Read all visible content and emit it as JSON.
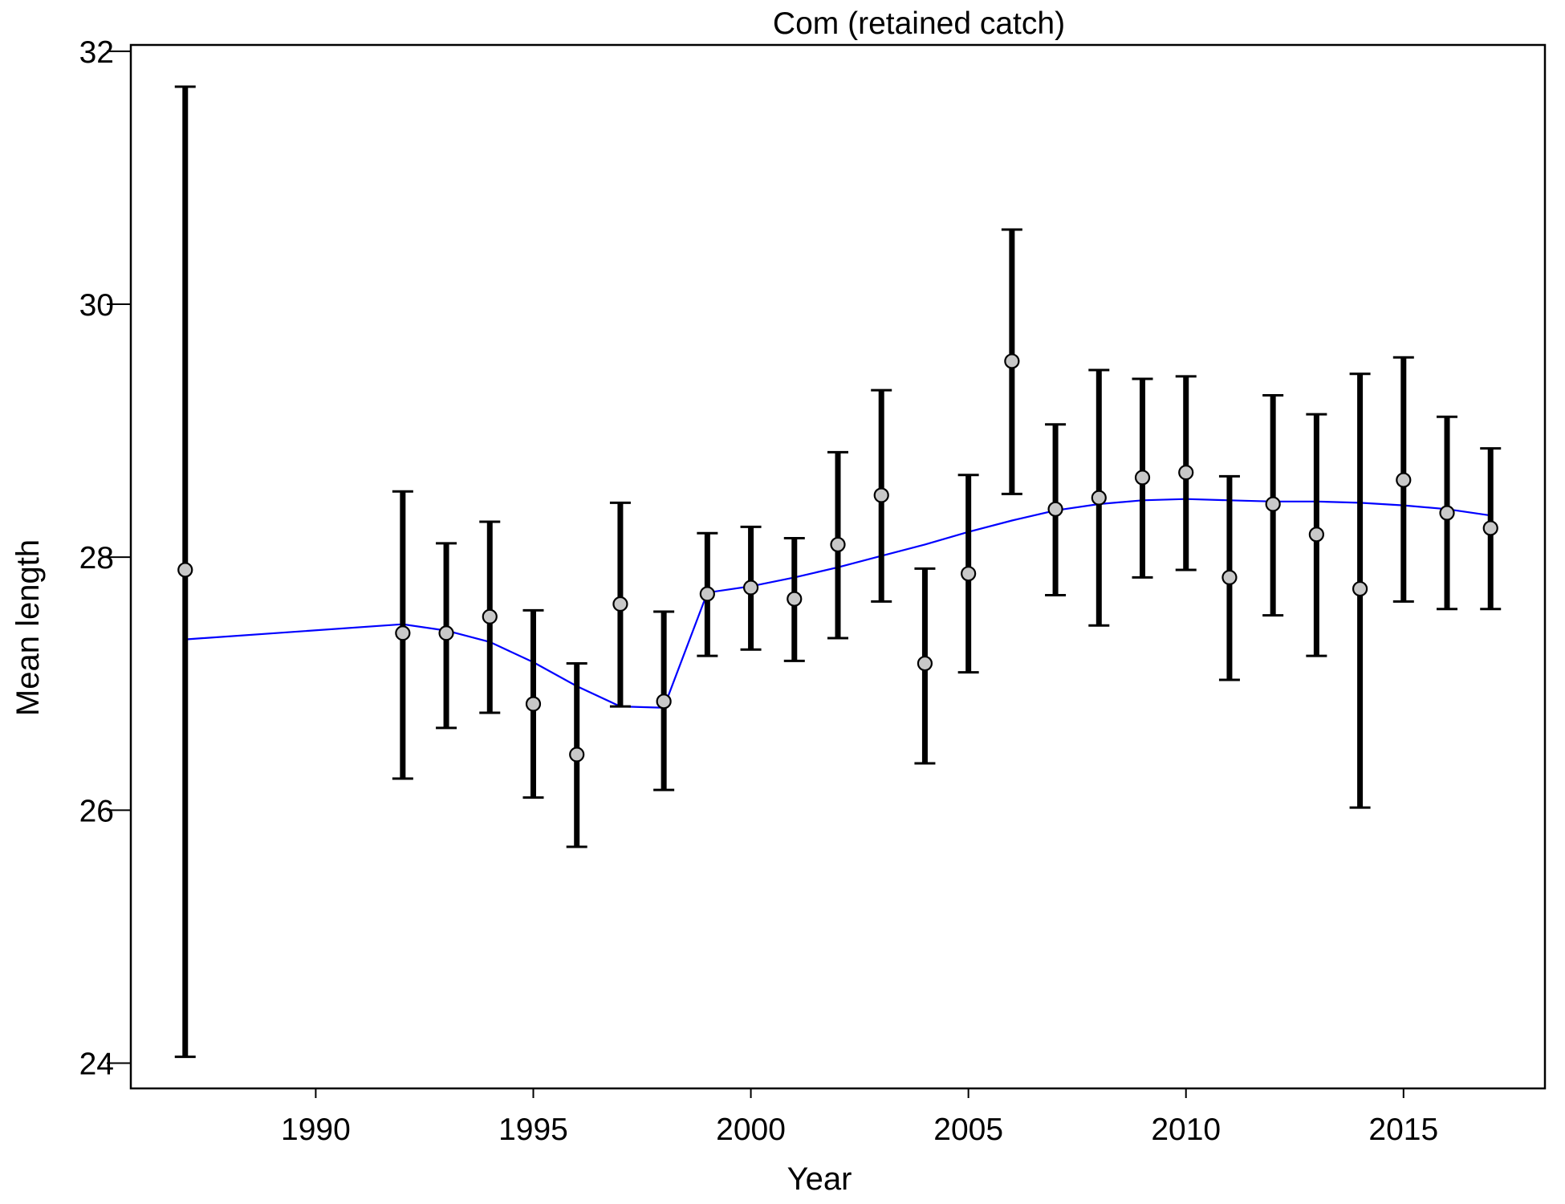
{
  "chart_data": {
    "type": "scatter",
    "title": "Com (retained catch)",
    "xlabel": "Year",
    "ylabel": "Mean length",
    "xlim": [
      1985.75,
      2018.25
    ],
    "ylim": [
      23.8,
      32.05
    ],
    "x_ticks": [
      1990,
      1995,
      2000,
      2005,
      2010,
      2015
    ],
    "y_ticks": [
      24,
      26,
      28,
      30,
      32
    ],
    "grid": false,
    "colors": {
      "error_bar": "#000000",
      "point_fill": "#c8c8c8",
      "point_stroke": "#000000",
      "fit_line": "#0000ff"
    },
    "observed": {
      "x": [
        1987,
        1992,
        1993,
        1994,
        1995,
        1996,
        1997,
        1998,
        1999,
        2000,
        2001,
        2002,
        2003,
        2004,
        2005,
        2006,
        2007,
        2008,
        2009,
        2010,
        2011,
        2012,
        2013,
        2014,
        2015,
        2016,
        2017
      ],
      "y": [
        27.9,
        27.4,
        27.4,
        27.53,
        26.84,
        26.44,
        27.63,
        26.86,
        27.71,
        27.76,
        27.67,
        28.1,
        28.49,
        27.16,
        27.87,
        29.55,
        28.38,
        28.47,
        28.63,
        28.67,
        27.84,
        28.42,
        28.18,
        27.75,
        28.61,
        28.35,
        28.23
      ],
      "lower": [
        24.05,
        26.25,
        26.65,
        26.77,
        26.1,
        25.71,
        26.82,
        26.16,
        27.22,
        27.27,
        27.18,
        27.36,
        27.65,
        26.37,
        27.09,
        28.5,
        27.7,
        27.46,
        27.84,
        27.9,
        27.03,
        27.54,
        27.22,
        26.02,
        27.65,
        27.59,
        27.59
      ],
      "upper": [
        31.72,
        28.52,
        28.11,
        28.28,
        27.58,
        27.16,
        28.43,
        27.57,
        28.19,
        28.24,
        28.15,
        28.83,
        29.32,
        27.91,
        28.65,
        30.59,
        29.05,
        29.48,
        29.41,
        29.43,
        28.64,
        29.28,
        29.13,
        29.45,
        29.58,
        29.11,
        28.86
      ]
    },
    "fit": {
      "x": [
        1987,
        1992,
        1993,
        1994,
        1995,
        1996,
        1997,
        1998,
        1999,
        2000,
        2001,
        2002,
        2003,
        2004,
        2005,
        2006,
        2007,
        2008,
        2009,
        2010,
        2011,
        2012,
        2013,
        2014,
        2015,
        2016,
        2017
      ],
      "y": [
        27.35,
        27.47,
        27.42,
        27.33,
        27.17,
        26.98,
        26.82,
        26.81,
        27.72,
        27.77,
        27.84,
        27.92,
        28.01,
        28.1,
        28.2,
        28.29,
        28.37,
        28.42,
        28.45,
        28.46,
        28.45,
        28.44,
        28.44,
        28.43,
        28.41,
        28.38,
        28.33
      ]
    }
  }
}
